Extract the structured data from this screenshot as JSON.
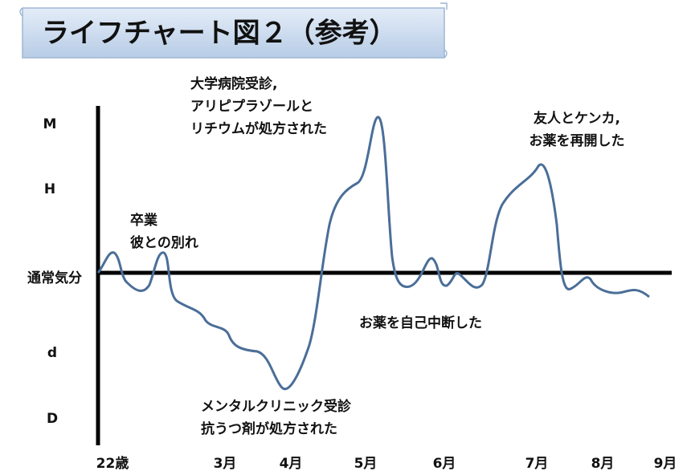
{
  "header": {
    "title": "ライフチャート図２（参考）"
  },
  "y_labels": [
    "M",
    "H",
    "通常気分",
    "d",
    "D"
  ],
  "x_labels": [
    "22歳",
    "3月",
    "4月",
    "5月",
    "6月",
    "7月",
    "8月",
    "9月"
  ],
  "annotations": [
    {
      "lines": [
        "卒業",
        "彼との別れ"
      ]
    },
    {
      "lines": [
        "大学病院受診,",
        "アリピプラゾールと",
        "リチウムが処方された"
      ]
    },
    {
      "lines": [
        "お薬を自己中断した"
      ]
    },
    {
      "lines": [
        "メンタルクリニック受診",
        "抗うつ剤が処方された"
      ]
    },
    {
      "lines": [
        "友人とケンカ,",
        "お薬を再開した"
      ]
    }
  ]
}
